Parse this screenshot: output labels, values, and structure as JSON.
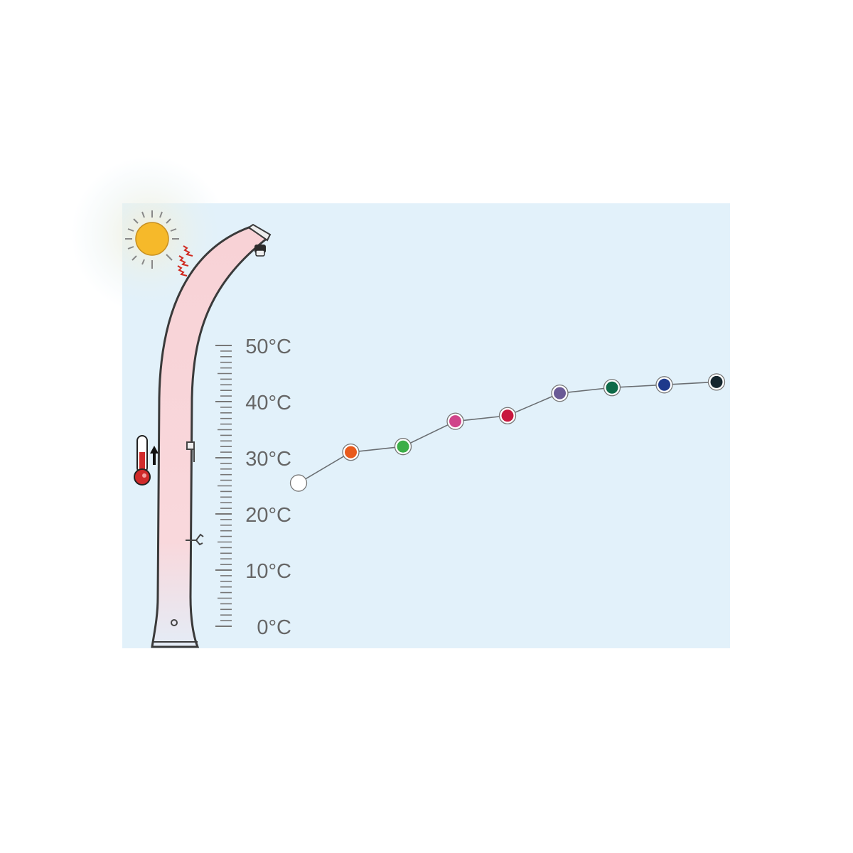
{
  "chart_data": {
    "type": "line",
    "title": "",
    "xlabel": "",
    "ylabel": "",
    "ylim": [
      0,
      50
    ],
    "y_ticks": [
      "0°C",
      "10°C",
      "20°C",
      "30°C",
      "40°C",
      "50°C"
    ],
    "y_tick_values": [
      0,
      10,
      20,
      30,
      40,
      50
    ],
    "grid": false,
    "legend": "none",
    "points": [
      {
        "color": "#ffffff",
        "value": 25.5
      },
      {
        "color": "#e85a1c",
        "value": 31
      },
      {
        "color": "#3cae48",
        "value": 32
      },
      {
        "color": "#d0448a",
        "value": 36.5
      },
      {
        "color": "#c8183f",
        "value": 37.5
      },
      {
        "color": "#6a5a96",
        "value": 41.5
      },
      {
        "color": "#0e6a48",
        "value": 42.5
      },
      {
        "color": "#1e3a8c",
        "value": 43
      },
      {
        "color": "#14262e",
        "value": 43.5
      }
    ]
  },
  "colors": {
    "background": "#e2f1fa",
    "tube_fill": "#f8d4d8",
    "sun": "#f6b92a",
    "line": "#6a6e72",
    "label": "#666666"
  },
  "icons": [
    "sun-icon",
    "heat-waves-icon",
    "thermometer-icon",
    "arrow-up-icon",
    "shower-head-icon",
    "faucet-icon"
  ]
}
